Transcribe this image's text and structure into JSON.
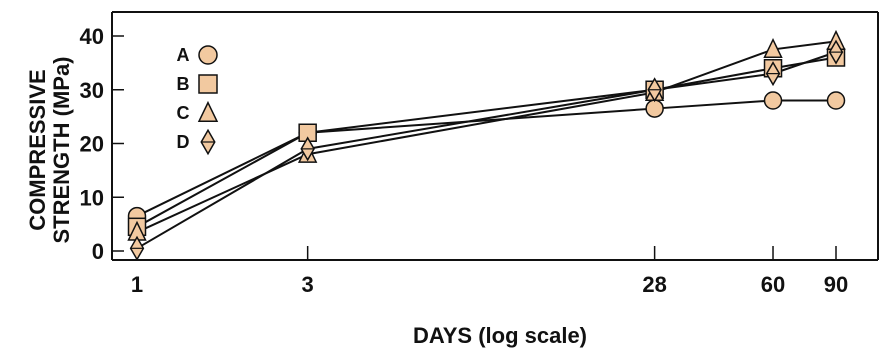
{
  "chart_data": {
    "type": "line",
    "title": "",
    "xlabel": "DAYS (log scale)",
    "ylabel_lines": [
      "COMPRESSIVE",
      "STRENGTH (MPa)"
    ],
    "x_scale": "log",
    "x_ticks": [
      1,
      3,
      28,
      60,
      90
    ],
    "y_ticks": [
      0,
      10,
      20,
      30,
      40
    ],
    "ylim": [
      0,
      43
    ],
    "xlim": [
      1,
      90
    ],
    "grid": false,
    "legend_position": "top-left",
    "marker_fill": "#f2c9a0",
    "marker_stroke": "#111111",
    "line_color": "#111111",
    "x": [
      1,
      3,
      28,
      60,
      90
    ],
    "series": [
      {
        "name": "A",
        "marker": "circle",
        "values": [
          6.5,
          22,
          26.5,
          28,
          28
        ]
      },
      {
        "name": "B",
        "marker": "square",
        "values": [
          4.5,
          22,
          30,
          34,
          36
        ]
      },
      {
        "name": "C",
        "marker": "triangle",
        "values": [
          3.5,
          18,
          29.5,
          37.5,
          39
        ]
      },
      {
        "name": "D",
        "marker": "diamond",
        "values": [
          0.5,
          19,
          30,
          33,
          37
        ]
      }
    ]
  }
}
